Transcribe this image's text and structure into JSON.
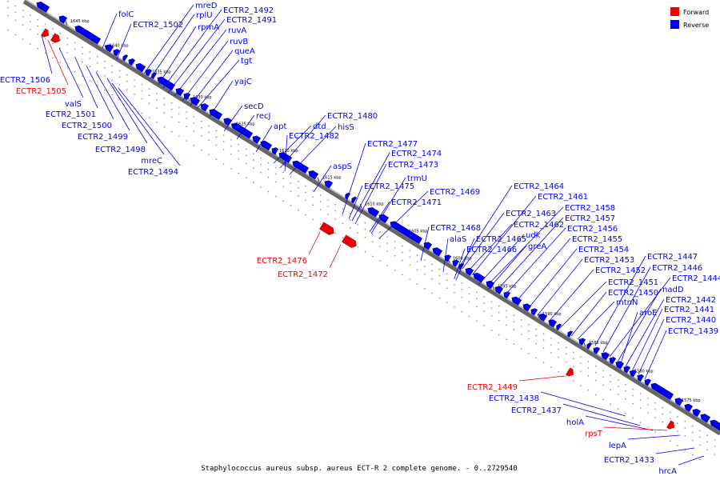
{
  "caption": "Staphylococcus aureus subsp. aureus ECT-R 2 complete genome. - 0..2729540",
  "legend": {
    "forward": {
      "label": "Forward",
      "color": "#ee0000"
    },
    "reverse": {
      "label": "Reverse",
      "color": "#0000ee"
    }
  },
  "colors": {
    "backbone": "#666666",
    "forward": "#ee0000",
    "reverse": "#0000ee",
    "leader_reverse": "#0000ee",
    "leader_forward": "#ee0000"
  },
  "scale": {
    "unit": "kbp",
    "ticks": [
      "1645 kbp",
      "1640 kbp",
      "1635 kbp",
      "1630 kbp",
      "1625 kbp",
      "1620 kbp",
      "1615 kbp",
      "1610 kbp",
      "1605 kbp",
      "1600 kbp",
      "1595 kbp",
      "1590 kbp",
      "1585 kbp",
      "1580 kbp",
      "1575 kbp"
    ]
  },
  "genes": [
    {
      "label": "folC",
      "strand": "reverse"
    },
    {
      "label": "ECTR2_1502",
      "strand": "reverse"
    },
    {
      "label": "mreD",
      "strand": "reverse"
    },
    {
      "label": "rplU",
      "strand": "reverse"
    },
    {
      "label": "rpmA",
      "strand": "reverse"
    },
    {
      "label": "ECTR2_1492",
      "strand": "reverse"
    },
    {
      "label": "ECTR2_1491",
      "strand": "reverse"
    },
    {
      "label": "ruvA",
      "strand": "reverse"
    },
    {
      "label": "ruvB",
      "strand": "reverse"
    },
    {
      "label": "queA",
      "strand": "reverse"
    },
    {
      "label": "tgt",
      "strand": "reverse"
    },
    {
      "label": "yajC",
      "strand": "reverse"
    },
    {
      "label": "secD",
      "strand": "reverse"
    },
    {
      "label": "recJ",
      "strand": "reverse"
    },
    {
      "label": "apt",
      "strand": "reverse"
    },
    {
      "label": "dtd",
      "strand": "reverse"
    },
    {
      "label": "ECTR2_1480",
      "strand": "reverse"
    },
    {
      "label": "hisS",
      "strand": "reverse"
    },
    {
      "label": "ECTR2_1482",
      "strand": "reverse"
    },
    {
      "label": "aspS",
      "strand": "reverse"
    },
    {
      "label": "ECTR2_1477",
      "strand": "reverse"
    },
    {
      "label": "ECTR2_1474",
      "strand": "reverse"
    },
    {
      "label": "ECTR2_1473",
      "strand": "reverse"
    },
    {
      "label": "trmU",
      "strand": "reverse"
    },
    {
      "label": "ECTR2_1475",
      "strand": "reverse"
    },
    {
      "label": "ECTR2_1469",
      "strand": "reverse"
    },
    {
      "label": "ECTR2_1471",
      "strand": "reverse"
    },
    {
      "label": "ECTR2_1464",
      "strand": "reverse"
    },
    {
      "label": "ECTR2_1461",
      "strand": "reverse"
    },
    {
      "label": "ECTR2_1458",
      "strand": "reverse"
    },
    {
      "label": "ECTR2_1463",
      "strand": "reverse"
    },
    {
      "label": "ECTR2_1457",
      "strand": "reverse"
    },
    {
      "label": "ECTR2_1462",
      "strand": "reverse"
    },
    {
      "label": "ECTR2_1456",
      "strand": "reverse"
    },
    {
      "label": "ECTR2_1468",
      "strand": "reverse"
    },
    {
      "label": "alaS",
      "strand": "reverse"
    },
    {
      "label": "ECTR2_1465",
      "strand": "reverse"
    },
    {
      "label": "udk",
      "strand": "reverse"
    },
    {
      "label": "ECTR2_1455",
      "strand": "reverse"
    },
    {
      "label": "ECTR2_1466",
      "strand": "reverse"
    },
    {
      "label": "greA",
      "strand": "reverse"
    },
    {
      "label": "ECTR2_1454",
      "strand": "reverse"
    },
    {
      "label": "ECTR2_1447",
      "strand": "reverse"
    },
    {
      "label": "ECTR2_1453",
      "strand": "reverse"
    },
    {
      "label": "ECTR2_1446",
      "strand": "reverse"
    },
    {
      "label": "ECTR2_1452",
      "strand": "reverse"
    },
    {
      "label": "ECTR2_1444",
      "strand": "reverse"
    },
    {
      "label": "ECTR2_1451",
      "strand": "reverse"
    },
    {
      "label": "nadD",
      "strand": "reverse"
    },
    {
      "label": "ECTR2_1450",
      "strand": "reverse"
    },
    {
      "label": "ECTR2_1442",
      "strand": "reverse"
    },
    {
      "label": "mtnN",
      "strand": "reverse"
    },
    {
      "label": "aroE",
      "strand": "reverse"
    },
    {
      "label": "ECTR2_1441",
      "strand": "reverse"
    },
    {
      "label": "ECTR2_1440",
      "strand": "reverse"
    },
    {
      "label": "ECTR2_1439",
      "strand": "reverse"
    },
    {
      "label": "ECTR2_1506",
      "strand": "reverse"
    },
    {
      "label": "ECTR2_1505",
      "strand": "forward"
    },
    {
      "label": "valS",
      "strand": "reverse"
    },
    {
      "label": "ECTR2_1501",
      "strand": "reverse"
    },
    {
      "label": "ECTR2_1500",
      "strand": "reverse"
    },
    {
      "label": "ECTR2_1499",
      "strand": "reverse"
    },
    {
      "label": "ECTR2_1498",
      "strand": "reverse"
    },
    {
      "label": "mreC",
      "strand": "reverse"
    },
    {
      "label": "ECTR2_1494",
      "strand": "reverse"
    },
    {
      "label": "ECTR2_1476",
      "strand": "forward"
    },
    {
      "label": "ECTR2_1472",
      "strand": "forward"
    },
    {
      "label": "ECTR2_1449",
      "strand": "forward"
    },
    {
      "label": "ECTR2_1438",
      "strand": "reverse"
    },
    {
      "label": "ECTR2_1437",
      "strand": "reverse"
    },
    {
      "label": "holA",
      "strand": "reverse"
    },
    {
      "label": "rpsT",
      "strand": "forward"
    },
    {
      "label": "lepA",
      "strand": "reverse"
    },
    {
      "label": "ECTR2_1433",
      "strand": "reverse"
    },
    {
      "label": "hrcA",
      "strand": "reverse"
    }
  ]
}
